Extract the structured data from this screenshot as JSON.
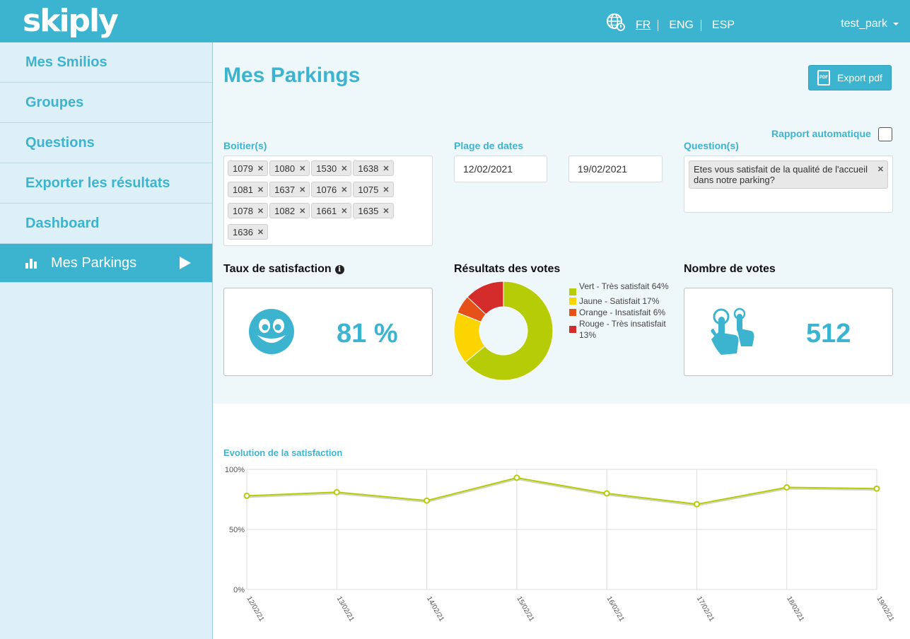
{
  "header": {
    "logo": "skiply",
    "languages": [
      {
        "label": "FR",
        "active": true
      },
      {
        "label": "ENG",
        "active": false
      },
      {
        "label": "ESP",
        "active": false
      }
    ],
    "user": "test_park",
    "icons": {
      "language": "globe-icon",
      "user_menu": "chevron-down-icon"
    }
  },
  "sidebar": {
    "items": [
      {
        "label": "Mes Smilios"
      },
      {
        "label": "Groupes"
      },
      {
        "label": "Questions"
      },
      {
        "label": "Exporter les résultats"
      },
      {
        "label": "Dashboard"
      },
      {
        "label": "Mes Parkings",
        "active": true,
        "icon": "bar-chart-icon"
      }
    ]
  },
  "main": {
    "title": "Mes Parkings",
    "export_label": "Export pdf",
    "rapport_label": "Rapport automatique",
    "rapport_checked": false,
    "boitiers_label": "Boitier(s)",
    "boitiers": [
      "1079",
      "1080",
      "1530",
      "1638",
      "1081",
      "1637",
      "1076",
      "1075",
      "1078",
      "1082",
      "1661",
      "1635",
      "1636"
    ],
    "dates_label": "Plage de dates",
    "date_start": "12/02/2021",
    "date_end": "19/02/2021",
    "questions_label": "Question(s)",
    "question": "Etes vous satisfait de la qualité de l'accueil dans notre parking?"
  },
  "satisfaction": {
    "title": "Taux de satisfaction",
    "value": "81 %",
    "icon": "smiley-icon"
  },
  "votes": {
    "title": "Résultats des votes",
    "legend": [
      {
        "label": "Vert - Très satisfait 64%",
        "color": "#b5cc06"
      },
      {
        "label": "Jaune - Satisfait 17%",
        "color": "#fcd500"
      },
      {
        "label": "Orange - Insatisfait 6%",
        "color": "#e6511a"
      },
      {
        "label": "Rouge - Très insatisfait 13%",
        "color": "#d42b2b"
      }
    ]
  },
  "nombre": {
    "title": "Nombre de votes",
    "value": "512",
    "icon": "touch-hand-icon"
  },
  "colors": {
    "accent": "#3db4cf",
    "line": "#b5cc06"
  },
  "chart_data": [
    {
      "type": "pie",
      "categories": [
        "Vert - Très satisfait",
        "Jaune - Satisfait",
        "Orange - Insatisfait",
        "Rouge - Très insatisfait"
      ],
      "values": [
        64,
        17,
        6,
        13
      ],
      "colors": [
        "#b5cc06",
        "#fcd500",
        "#e6511a",
        "#d42b2b"
      ],
      "title": "Résultats des votes",
      "donut": true
    },
    {
      "type": "line",
      "title": "Evolution de la satisfaction",
      "categories": [
        "12/02/21",
        "13/02/21",
        "14/02/21",
        "15/02/21",
        "16/02/21",
        "17/02/21",
        "18/02/21",
        "19/02/21"
      ],
      "series": [
        {
          "values": [
            78,
            81,
            74,
            93,
            80,
            71,
            85,
            84
          ]
        }
      ],
      "yticks": [
        "0%",
        "50%",
        "100%"
      ],
      "ylim": [
        0,
        100
      ],
      "grid": true
    }
  ]
}
